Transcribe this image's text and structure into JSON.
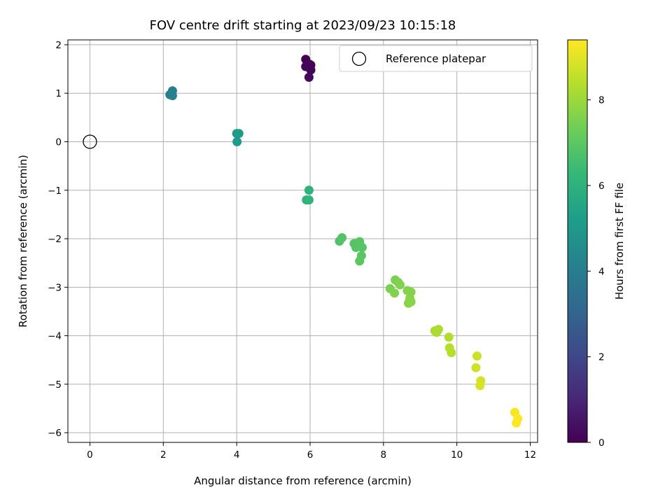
{
  "chart_data": {
    "type": "scatter",
    "title": "FOV centre drift starting at 2023/09/23 10:15:18",
    "xlabel": "Angular distance from reference (arcmin)",
    "ylabel": "Rotation from reference (arcmin)",
    "xlim": [
      -0.6,
      12.2
    ],
    "ylim": [
      -6.2,
      2.1
    ],
    "xticks": [
      0,
      2,
      4,
      6,
      8,
      10,
      12
    ],
    "yticks": [
      -6,
      -5,
      -4,
      -3,
      -2,
      -1,
      0,
      1,
      2
    ],
    "grid": true,
    "legend": {
      "label": "Reference platepar",
      "placement": "top-right"
    },
    "reference_point": {
      "x": 0,
      "y": 0
    },
    "colorbar": {
      "label": "Hours from first FF file",
      "colormap": "viridis",
      "range": [
        0,
        9.4
      ],
      "ticks": [
        0,
        2,
        4,
        6,
        8
      ]
    },
    "points": [
      {
        "x": 5.88,
        "y": 1.7,
        "c": 0.0
      },
      {
        "x": 5.98,
        "y": 1.6,
        "c": 0.05
      },
      {
        "x": 5.88,
        "y": 1.55,
        "c": 0.08
      },
      {
        "x": 6.02,
        "y": 1.58,
        "c": 0.1
      },
      {
        "x": 6.02,
        "y": 1.48,
        "c": 0.12
      },
      {
        "x": 5.97,
        "y": 1.33,
        "c": 0.15
      },
      {
        "x": 2.18,
        "y": 0.97,
        "c": 4.0
      },
      {
        "x": 2.25,
        "y": 1.05,
        "c": 4.05
      },
      {
        "x": 2.25,
        "y": 0.95,
        "c": 4.1
      },
      {
        "x": 4.0,
        "y": 0.17,
        "c": 5.05
      },
      {
        "x": 4.06,
        "y": 0.17,
        "c": 5.1
      },
      {
        "x": 4.01,
        "y": 0.0,
        "c": 5.15
      },
      {
        "x": 5.97,
        "y": -1.0,
        "c": 6.0
      },
      {
        "x": 5.9,
        "y": -1.2,
        "c": 6.05
      },
      {
        "x": 5.97,
        "y": -1.2,
        "c": 6.1
      },
      {
        "x": 6.8,
        "y": -2.05,
        "c": 6.8
      },
      {
        "x": 6.87,
        "y": -1.98,
        "c": 6.82
      },
      {
        "x": 7.2,
        "y": -2.1,
        "c": 6.85
      },
      {
        "x": 7.25,
        "y": -2.18,
        "c": 6.88
      },
      {
        "x": 7.35,
        "y": -2.06,
        "c": 6.9
      },
      {
        "x": 7.42,
        "y": -2.18,
        "c": 6.92
      },
      {
        "x": 7.4,
        "y": -2.35,
        "c": 6.95
      },
      {
        "x": 7.35,
        "y": -2.46,
        "c": 6.98
      },
      {
        "x": 8.18,
        "y": -3.03,
        "c": 7.5
      },
      {
        "x": 8.32,
        "y": -2.85,
        "c": 7.52
      },
      {
        "x": 8.4,
        "y": -2.9,
        "c": 7.55
      },
      {
        "x": 8.45,
        "y": -2.95,
        "c": 7.57
      },
      {
        "x": 8.3,
        "y": -3.12,
        "c": 7.6
      },
      {
        "x": 8.65,
        "y": -3.07,
        "c": 7.62
      },
      {
        "x": 8.75,
        "y": -3.1,
        "c": 7.65
      },
      {
        "x": 8.72,
        "y": -3.23,
        "c": 7.67
      },
      {
        "x": 8.68,
        "y": -3.33,
        "c": 7.7
      },
      {
        "x": 8.75,
        "y": -3.3,
        "c": 7.72
      },
      {
        "x": 9.4,
        "y": -3.9,
        "c": 8.2
      },
      {
        "x": 9.5,
        "y": -3.87,
        "c": 8.22
      },
      {
        "x": 9.45,
        "y": -3.93,
        "c": 8.25
      },
      {
        "x": 9.78,
        "y": -4.03,
        "c": 8.3
      },
      {
        "x": 9.8,
        "y": -4.25,
        "c": 8.35
      },
      {
        "x": 9.85,
        "y": -4.35,
        "c": 8.38
      },
      {
        "x": 10.55,
        "y": -4.42,
        "c": 8.7
      },
      {
        "x": 10.52,
        "y": -4.66,
        "c": 8.75
      },
      {
        "x": 10.65,
        "y": -4.93,
        "c": 8.8
      },
      {
        "x": 10.63,
        "y": -5.03,
        "c": 8.85
      },
      {
        "x": 11.58,
        "y": -5.58,
        "c": 9.3
      },
      {
        "x": 11.66,
        "y": -5.71,
        "c": 9.35
      },
      {
        "x": 11.62,
        "y": -5.8,
        "c": 9.4
      }
    ]
  }
}
